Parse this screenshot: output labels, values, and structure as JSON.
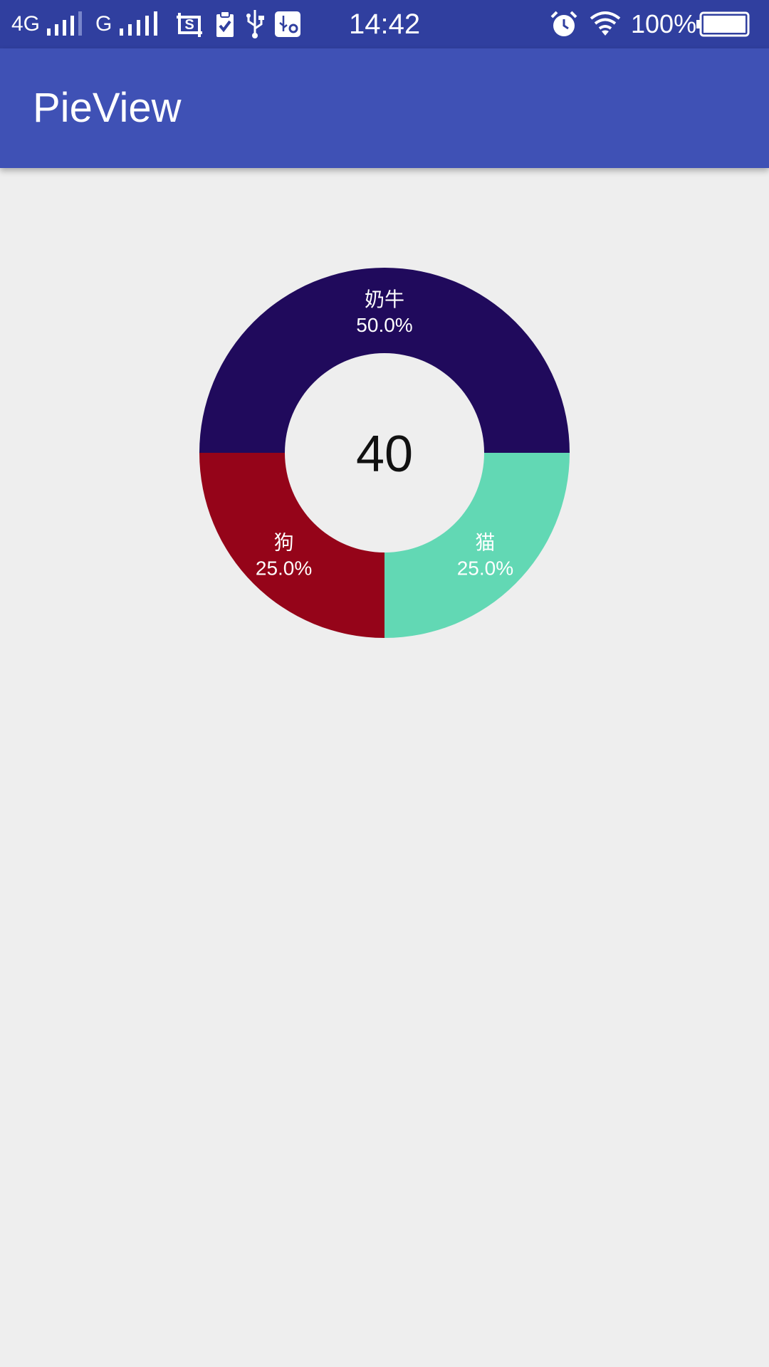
{
  "status_bar": {
    "network_1": "4G",
    "network_2": "G",
    "time": "14:42",
    "battery_percent": "100%",
    "battery_level": 1.0,
    "icons": [
      "signal-icon",
      "signal-icon",
      "screenshot-icon",
      "clipboard-check-icon",
      "usb-icon",
      "usb-settings-icon",
      "alarm-icon",
      "wifi-icon",
      "battery-icon"
    ]
  },
  "app_bar": {
    "title": "PieView"
  },
  "pie": {
    "center_value": "40",
    "colors": {
      "slice_1": "#200a5c",
      "slice_2": "#62d8b4",
      "slice_3": "#950419"
    }
  },
  "chart_data": {
    "type": "pie",
    "style": "donut",
    "slices": [
      {
        "label": "奶牛",
        "percent_label": "50.0%",
        "value": 50.0,
        "color": "#200a5c"
      },
      {
        "label": "猫",
        "percent_label": "25.0%",
        "value": 25.0,
        "color": "#62d8b4"
      },
      {
        "label": "狗",
        "percent_label": "25.0%",
        "value": 25.0,
        "color": "#950419"
      }
    ],
    "center_text": "40"
  }
}
